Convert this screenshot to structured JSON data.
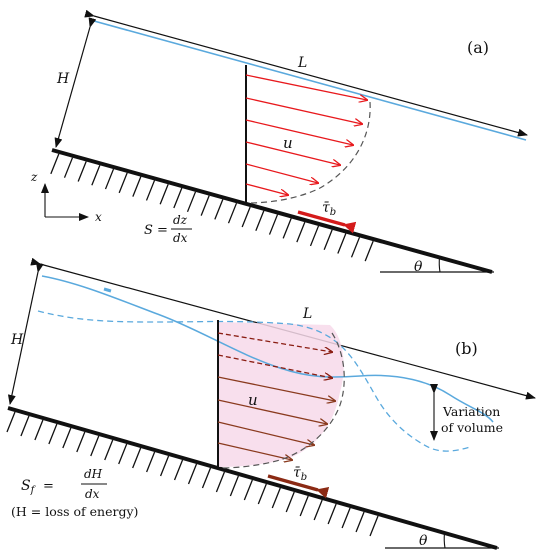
{
  "panel_a": {
    "tag": "(a)",
    "length": "L",
    "depth": "H",
    "velocity": "u",
    "shear": "τ̄",
    "shear_sub": "b",
    "axis_z": "z",
    "axis_x": "x",
    "slope_lhs": "S =",
    "slope_num": "dz",
    "slope_den": "dx",
    "angle": "θ"
  },
  "panel_b": {
    "tag": "(b)",
    "length": "L",
    "depth": "H",
    "velocity": "u",
    "shear": "τ̄",
    "shear_sub": "b",
    "variation_1": "Variation",
    "variation_2": "of volume",
    "slope_lhs": "S",
    "slope_sub": "f",
    "slope_eq": "=",
    "slope_num": "dH",
    "slope_den": "dx",
    "note": "(H = loss of energy)",
    "angle": "θ"
  },
  "colors": {
    "ground": "#111111",
    "water_surface": "#5aa9dd",
    "velocity_arrow_a": "#e8191d",
    "velocity_arrow_b": "#8a3a1e",
    "velocity_dashed_b": "#8a1d12",
    "profile": "#555555",
    "shear_arrow_a": "#d41b1b",
    "shear_arrow_b": "#8b2a14",
    "highlight_b": "#f7d9ea"
  }
}
